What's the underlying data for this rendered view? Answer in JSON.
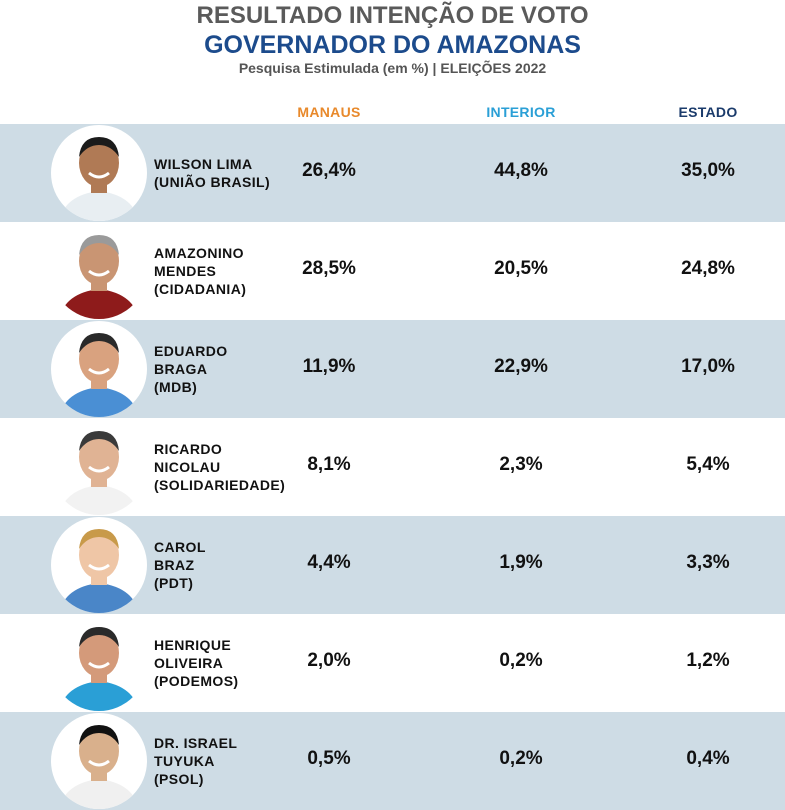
{
  "header": {
    "title": "RESULTADO INTENÇÃO DE VOTO",
    "subtitle": "GOVERNADOR DO AMAZONAS",
    "note": "Pesquisa Estimulada (em %) | ELEIÇÕES 2022"
  },
  "table": {
    "columns": [
      "MANAUS",
      "INTERIOR",
      "ESTADO"
    ],
    "rows": [
      {
        "name": [
          "WILSON LIMA",
          "(UNIÃO BRASIL)"
        ],
        "values": [
          "26,4%",
          "44,8%",
          "35,0%"
        ]
      },
      {
        "name": [
          "AMAZONINO",
          "MENDES",
          "(CIDADANIA)"
        ],
        "values": [
          "28,5%",
          "20,5%",
          "24,8%"
        ]
      },
      {
        "name": [
          "EDUARDO",
          "BRAGA",
          "(MDB)"
        ],
        "values": [
          "11,9%",
          "22,9%",
          "17,0%"
        ]
      },
      {
        "name": [
          "RICARDO",
          "NICOLAU",
          "(SOLIDARIEDADE)"
        ],
        "values": [
          "8,1%",
          "2,3%",
          "5,4%"
        ]
      },
      {
        "name": [
          "CAROL",
          "BRAZ",
          "(PDT)"
        ],
        "values": [
          "4,4%",
          "1,9%",
          "3,3%"
        ]
      },
      {
        "name": [
          "HENRIQUE",
          "OLIVEIRA",
          "(PODEMOS)"
        ],
        "values": [
          "2,0%",
          "0,2%",
          "1,2%"
        ]
      },
      {
        "name": [
          "DR. ISRAEL",
          "TUYUKA",
          "(PSOL)"
        ],
        "values": [
          "0,5%",
          "0,2%",
          "0,4%"
        ]
      }
    ]
  }
}
